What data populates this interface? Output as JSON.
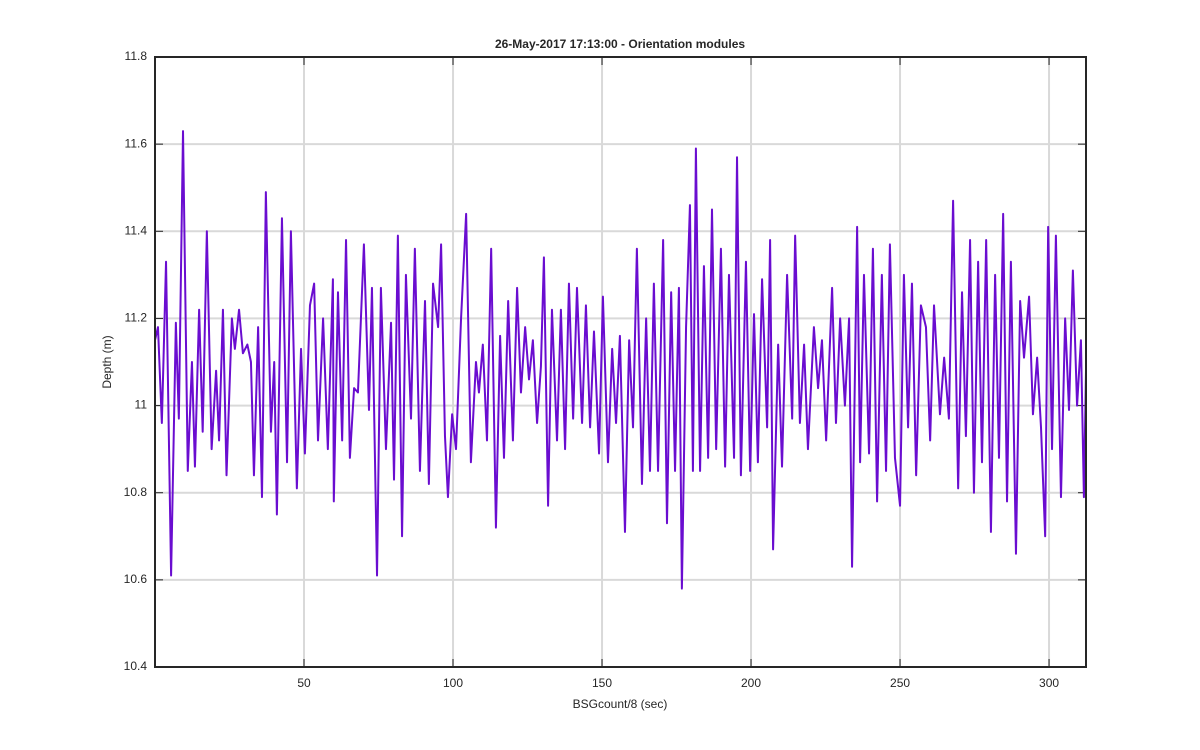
{
  "chart_data": {
    "type": "line",
    "title": "26-May-2017 17:13:00 - Orientation modules",
    "x_label": "BSGcount/8 (sec)",
    "y_label": "Depth (m)",
    "color": "#6a0dd0",
    "grid": true,
    "xlim": [
      0,
      312.4
    ],
    "ylim": [
      10.4,
      11.8
    ],
    "xticks": [
      50,
      100,
      150,
      200,
      250,
      300
    ],
    "yticks": [
      10.4,
      10.6,
      10.8,
      11,
      11.2,
      11.4,
      11.6,
      11.8
    ],
    "x": [
      0,
      1,
      2.3,
      3.7,
      5.4,
      7,
      8,
      9.4,
      11,
      12.4,
      13.4,
      14.8,
      16,
      17.4,
      19,
      20.5,
      21.5,
      22.8,
      24,
      25.8,
      26.8,
      28.2,
      29.5,
      31,
      32.2,
      33.2,
      34.6,
      35.9,
      37.2,
      38.9,
      40,
      40.9,
      42.6,
      44.3,
      45.6,
      47.6,
      49,
      50.3,
      52,
      53.4,
      54.7,
      56.4,
      58,
      59.7,
      60,
      61.4,
      62.8,
      64.1,
      65.4,
      66.8,
      68.1,
      70.1,
      71.8,
      72.8,
      74.5,
      75.8,
      77.5,
      79.2,
      80.2,
      81.5,
      82.9,
      84.2,
      85.9,
      87.2,
      88.9,
      90.6,
      91.9,
      93.3,
      95,
      96,
      97.3,
      98.3,
      99.7,
      101,
      102.7,
      104.4,
      106,
      107.7,
      108.7,
      110,
      111.4,
      112.8,
      114.4,
      115.8,
      117.1,
      118.5,
      120.1,
      121.5,
      122.8,
      124.2,
      125.5,
      126.8,
      128.2,
      129.5,
      130.5,
      131.9,
      133.2,
      134.9,
      136.2,
      137.6,
      138.9,
      140.3,
      141.6,
      143.3,
      144.6,
      146,
      147.3,
      149,
      150.3,
      152,
      153.4,
      154.7,
      156,
      157.7,
      159.1,
      160.4,
      161.7,
      163.4,
      164.8,
      166.1,
      167.4,
      168.8,
      170.5,
      171.8,
      173.2,
      174.5,
      175.8,
      176.8,
      178.2,
      179.5,
      180.5,
      181.5,
      182.9,
      184.2,
      185.6,
      186.9,
      188.3,
      189.9,
      191.3,
      192.6,
      194.3,
      195.3,
      196.6,
      198.3,
      199.7,
      201,
      202.3,
      203.7,
      205.4,
      206.4,
      207.4,
      209.1,
      210.4,
      212.1,
      213.8,
      214.8,
      216.4,
      217.8,
      219.1,
      221.1,
      222.5,
      223.8,
      225.2,
      227.2,
      228.5,
      229.9,
      231.5,
      232.9,
      233.9,
      235.6,
      236.6,
      237.9,
      239.6,
      240.9,
      242.3,
      243.9,
      245.3,
      246.6,
      248.3,
      250,
      251.3,
      252.7,
      254,
      255.4,
      257,
      258.7,
      260.1,
      261.4,
      263.4,
      264.8,
      266.4,
      267.8,
      269.5,
      270.8,
      272.1,
      273.5,
      274.8,
      276.2,
      277.5,
      278.9,
      280.5,
      281.9,
      283.2,
      284.6,
      285.9,
      287.2,
      288.9,
      290.3,
      291.6,
      293.3,
      294.6,
      296,
      297.3,
      298.7,
      299.7,
      301,
      302.3,
      304,
      305.4,
      306.7,
      308,
      309.4,
      310.7,
      311.7,
      312.4
    ],
    "values": [
      11.15,
      11.18,
      10.96,
      11.33,
      10.61,
      11.19,
      10.97,
      11.63,
      10.85,
      11.1,
      10.86,
      11.22,
      10.94,
      11.4,
      10.9,
      11.08,
      10.92,
      11.22,
      10.84,
      11.2,
      11.13,
      11.22,
      11.12,
      11.14,
      11.1,
      10.84,
      11.18,
      10.79,
      11.49,
      10.94,
      11.1,
      10.75,
      11.43,
      10.87,
      11.4,
      10.81,
      11.13,
      10.89,
      11.23,
      11.28,
      10.92,
      11.2,
      10.9,
      11.29,
      10.78,
      11.26,
      10.92,
      11.38,
      10.88,
      11.04,
      11.03,
      11.37,
      10.99,
      11.27,
      10.61,
      11.27,
      10.9,
      11.19,
      10.83,
      11.39,
      10.7,
      11.3,
      10.97,
      11.36,
      10.85,
      11.24,
      10.82,
      11.28,
      11.18,
      11.37,
      10.93,
      10.79,
      10.98,
      10.9,
      11.2,
      11.44,
      10.87,
      11.1,
      11.03,
      11.14,
      10.92,
      11.36,
      10.72,
      11.16,
      10.88,
      11.24,
      10.92,
      11.27,
      11.03,
      11.18,
      11.06,
      11.15,
      10.96,
      11.09,
      11.34,
      10.77,
      11.22,
      10.92,
      11.22,
      10.9,
      11.28,
      10.97,
      11.27,
      10.96,
      11.23,
      10.95,
      11.17,
      10.89,
      11.25,
      10.87,
      11.13,
      10.96,
      11.16,
      10.71,
      11.15,
      10.95,
      11.36,
      10.82,
      11.2,
      10.85,
      11.28,
      10.85,
      11.38,
      10.73,
      11.26,
      10.85,
      11.27,
      10.58,
      11.18,
      11.46,
      10.85,
      11.59,
      10.85,
      11.32,
      10.88,
      11.45,
      10.9,
      11.36,
      10.86,
      11.3,
      10.88,
      11.57,
      10.84,
      11.33,
      10.85,
      11.21,
      10.87,
      11.29,
      10.95,
      11.38,
      10.67,
      11.14,
      10.86,
      11.3,
      10.97,
      11.39,
      10.96,
      11.14,
      10.9,
      11.18,
      11.04,
      11.15,
      10.92,
      11.27,
      10.96,
      11.2,
      11.0,
      11.2,
      10.63,
      11.41,
      10.87,
      11.3,
      10.89,
      11.36,
      10.78,
      11.3,
      10.85,
      11.37,
      10.88,
      10.77,
      11.3,
      10.95,
      11.28,
      10.84,
      11.23,
      11.18,
      10.92,
      11.23,
      10.98,
      11.11,
      10.97,
      11.47,
      10.81,
      11.26,
      10.93,
      11.38,
      10.8,
      11.33,
      10.87,
      11.38,
      10.71,
      11.3,
      10.88,
      11.44,
      10.78,
      11.33,
      10.66,
      11.24,
      11.11,
      11.25,
      10.98,
      11.11,
      10.95,
      10.7,
      11.41,
      10.9,
      11.39,
      10.79,
      11.2,
      10.99,
      11.31,
      11.0,
      11.15,
      10.79,
      11.08
    ]
  }
}
